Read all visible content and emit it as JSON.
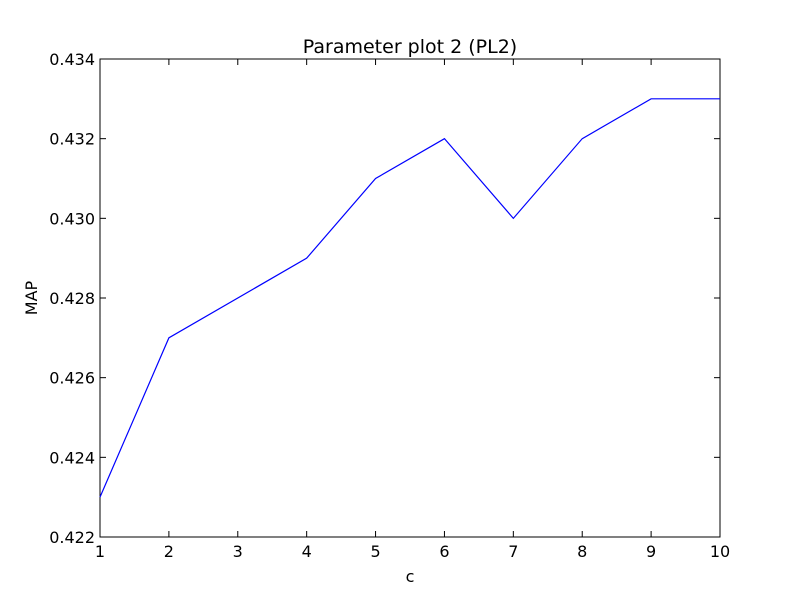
{
  "chart_data": {
    "type": "line",
    "title": "Parameter plot 2 (PL2)",
    "xlabel": "c",
    "ylabel": "MAP",
    "xlim": [
      1,
      10
    ],
    "ylim": [
      0.422,
      0.434
    ],
    "x_ticks": [
      "1",
      "2",
      "3",
      "4",
      "5",
      "6",
      "7",
      "8",
      "9",
      "10"
    ],
    "y_ticks": [
      "0.422",
      "0.424",
      "0.426",
      "0.428",
      "0.430",
      "0.432",
      "0.434"
    ],
    "grid": false,
    "series": [
      {
        "color": "#0000ff",
        "points": [
          {
            "x": 1,
            "y": 0.423
          },
          {
            "x": 2,
            "y": 0.427
          },
          {
            "x": 4,
            "y": 0.429
          },
          {
            "x": 5,
            "y": 0.431
          },
          {
            "x": 6,
            "y": 0.432
          },
          {
            "x": 7,
            "y": 0.43
          },
          {
            "x": 8,
            "y": 0.432
          },
          {
            "x": 9,
            "y": 0.433
          },
          {
            "x": 10,
            "y": 0.433
          }
        ]
      }
    ]
  }
}
